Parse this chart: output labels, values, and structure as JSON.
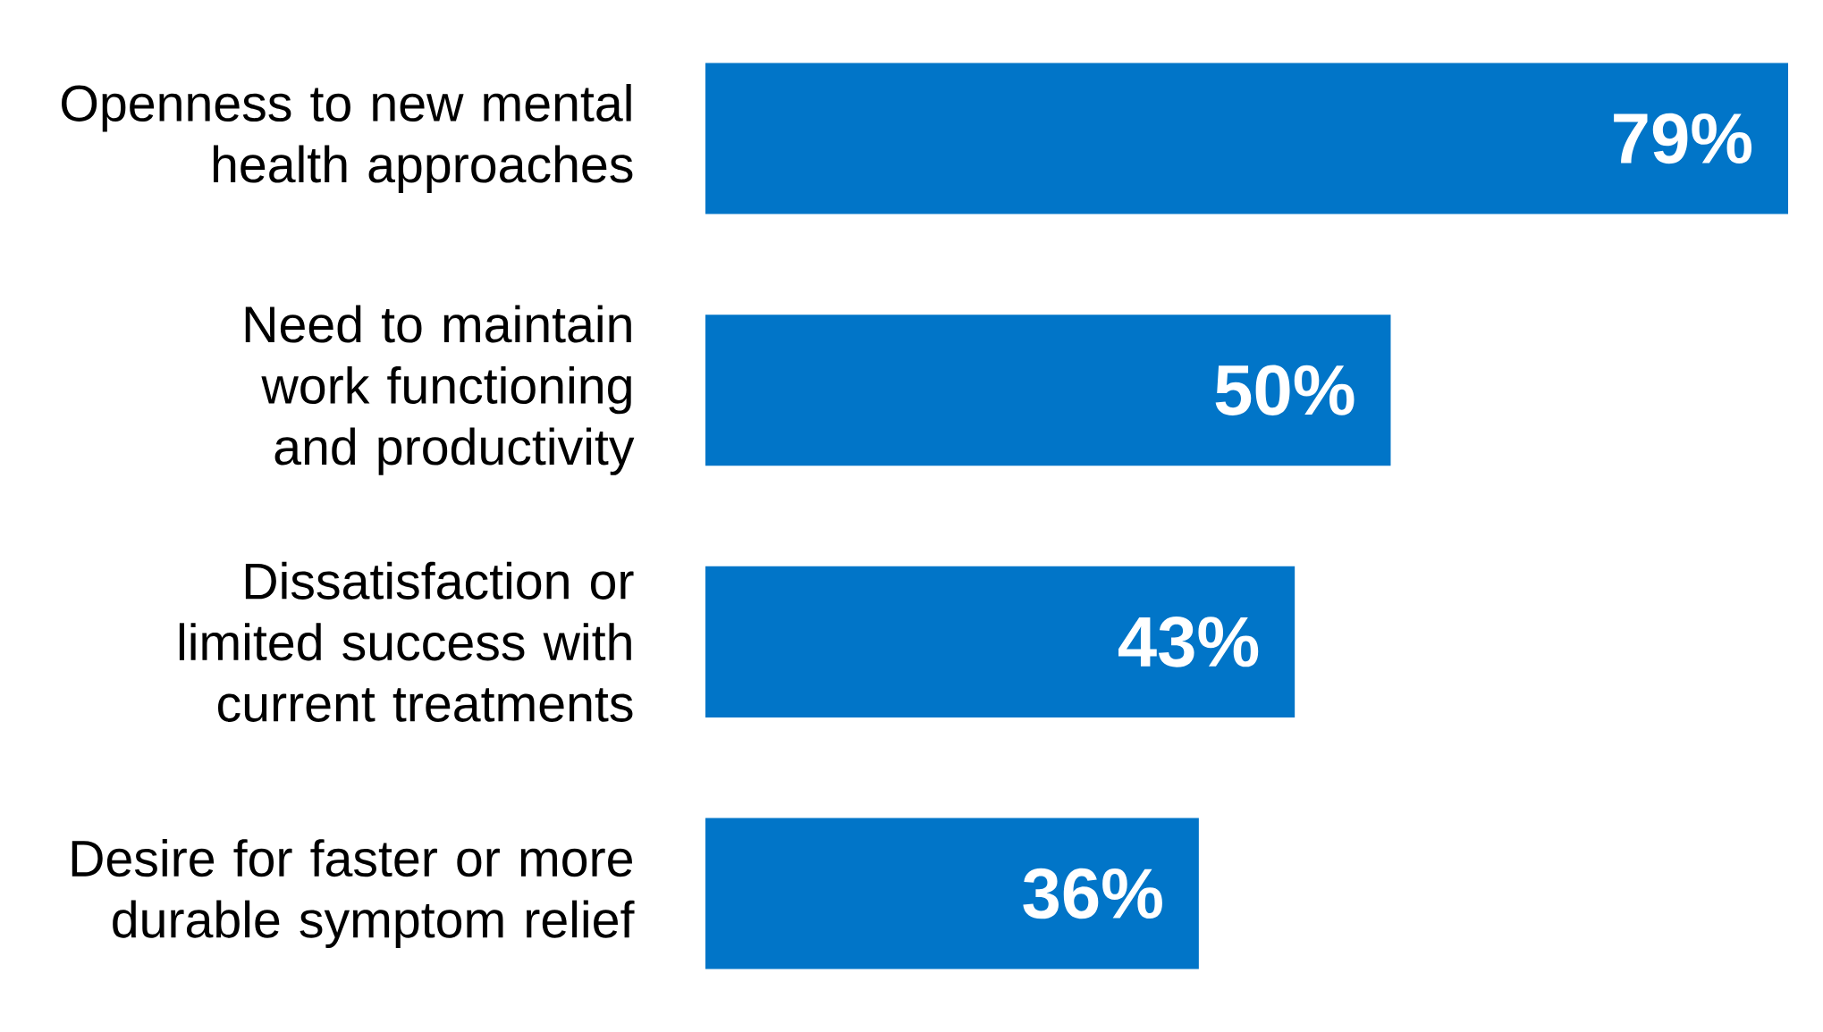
{
  "chart_data": {
    "type": "bar",
    "orientation": "horizontal",
    "categories": [
      "Openness to new mental health approaches",
      "Need to maintain work functioning and productivity",
      "Dissatisfaction or limited success with current treatments",
      "Desire for faster or more durable symptom relief"
    ],
    "values": [
      79,
      50,
      43,
      36
    ],
    "color": "#0175c8",
    "value_labels": [
      "79%",
      "50%",
      "43%",
      "36%"
    ]
  }
}
